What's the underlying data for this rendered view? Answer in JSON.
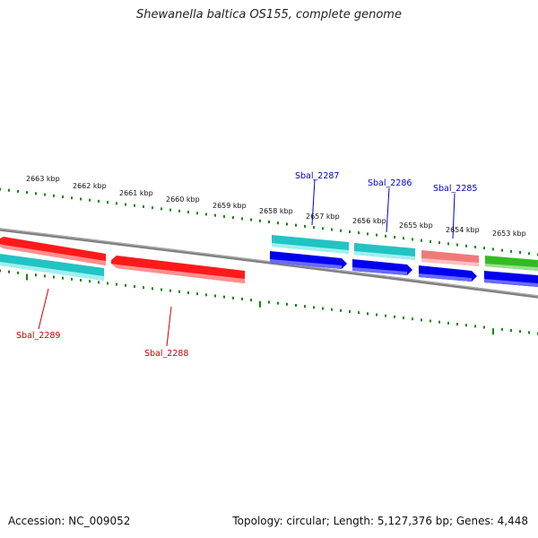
{
  "title": "Shewanella baltica OS155, complete genome",
  "footer": {
    "accession": "Accession: NC_009052",
    "summary": "Topology: circular; Length: 5,127,376 bp; Genes: 4,448"
  },
  "colors": {
    "backbone": "#808080",
    "tick": "#118811",
    "label_forward": "#0000cc",
    "label_reverse": "#cc0000",
    "red": "#ff1a1a",
    "cyan": "#22c3c3",
    "blue": "#0000ee",
    "pink": "#f07a7a",
    "green": "#33bb22"
  },
  "ticks": [
    "2663 kbp",
    "2662 kbp",
    "2661 kbp",
    "2660 kbp",
    "2659 kbp",
    "2658 kbp",
    "2657 kbp",
    "2656 kbp",
    "2655 kbp",
    "2654 kbp",
    "2653 kbp"
  ],
  "genes": [
    {
      "label": "Sbal_2289",
      "strand": "reverse"
    },
    {
      "label": "Sbal_2288",
      "strand": "reverse"
    },
    {
      "label": "Sbal_2287",
      "strand": "forward"
    },
    {
      "label": "Sbal_2286",
      "strand": "forward"
    },
    {
      "label": "Sbal_2285",
      "strand": "forward"
    }
  ]
}
